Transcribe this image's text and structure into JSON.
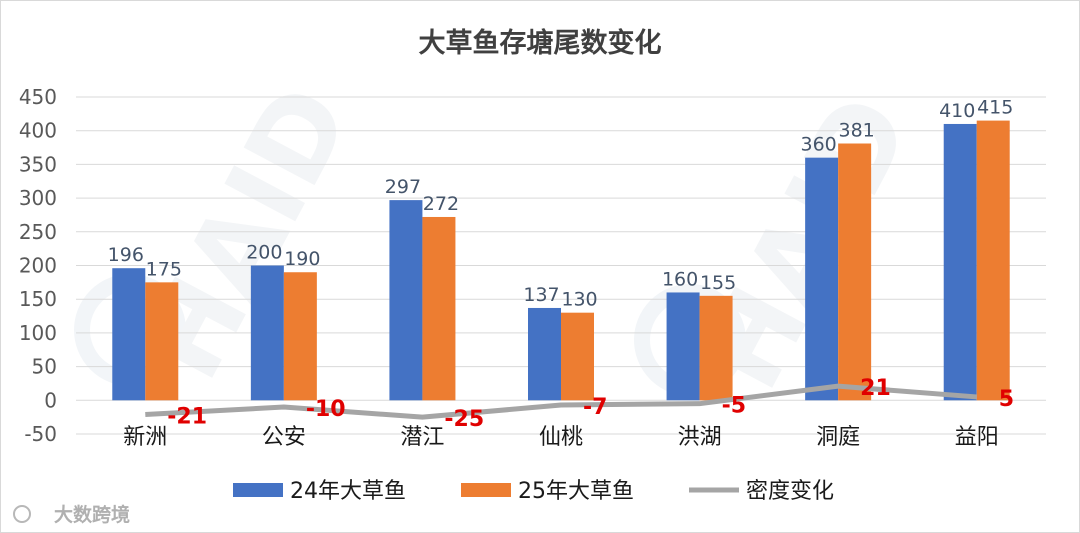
{
  "chart_data": {
    "type": "bar",
    "title": "大草鱼存塘尾数变化",
    "categories": [
      "新洲",
      "公安",
      "潜江",
      "仙桃",
      "洪湖",
      "洞庭",
      "益阳"
    ],
    "series": [
      {
        "name": "24年大草鱼",
        "type": "bar",
        "color": "#4472c4",
        "values": [
          196,
          200,
          297,
          137,
          160,
          360,
          410
        ]
      },
      {
        "name": "25年大草鱼",
        "type": "bar",
        "color": "#ed7d31",
        "values": [
          175,
          190,
          272,
          130,
          155,
          381,
          415
        ]
      },
      {
        "name": "密度变化",
        "type": "line",
        "color": "#a5a5a5",
        "values": [
          -21,
          -10,
          -25,
          -7,
          -5,
          21,
          5
        ]
      }
    ],
    "ylim": [
      -50,
      450
    ],
    "yticks": [
      -50,
      0,
      50,
      100,
      150,
      200,
      250,
      300,
      350,
      400,
      450
    ],
    "grid": true,
    "legend_position": "bottom"
  },
  "watermark": {
    "text": "大数跨境",
    "logo": "HAID"
  }
}
